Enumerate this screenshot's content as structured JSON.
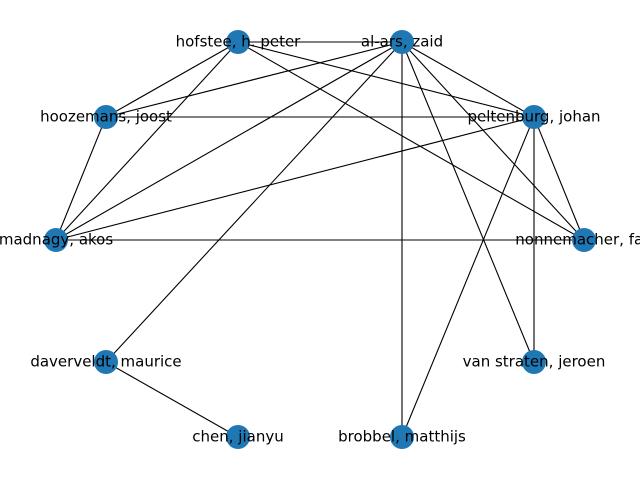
{
  "graph": {
    "node_color": "#1f77b4",
    "edge_color": "#000000",
    "nodes": [
      {
        "id": "al-ars",
        "label": "al-ars, zaid"
      },
      {
        "id": "hofstee",
        "label": "hofstee, h. peter"
      },
      {
        "id": "hoozemans",
        "label": "hoozemans, joost"
      },
      {
        "id": "madnagy",
        "label": "madnagy, akos"
      },
      {
        "id": "daverveldt",
        "label": "daverveldt, maurice"
      },
      {
        "id": "chen",
        "label": "chen, jianyu"
      },
      {
        "id": "brobbel",
        "label": "brobbel, matthijs"
      },
      {
        "id": "vanstraten",
        "label": "van straten, jeroen"
      },
      {
        "id": "nonnemacher",
        "label": "nonnemacher, fab"
      },
      {
        "id": "peltenburg",
        "label": "peltenburg, johan"
      }
    ],
    "edges": [
      [
        "hofstee",
        "al-ars"
      ],
      [
        "hofstee",
        "hoozemans"
      ],
      [
        "hofstee",
        "madnagy"
      ],
      [
        "hofstee",
        "peltenburg"
      ],
      [
        "hofstee",
        "nonnemacher"
      ],
      [
        "al-ars",
        "hoozemans"
      ],
      [
        "al-ars",
        "madnagy"
      ],
      [
        "al-ars",
        "daverveldt"
      ],
      [
        "al-ars",
        "brobbel"
      ],
      [
        "al-ars",
        "vanstraten"
      ],
      [
        "al-ars",
        "nonnemacher"
      ],
      [
        "al-ars",
        "peltenburg"
      ],
      [
        "hoozemans",
        "peltenburg"
      ],
      [
        "hoozemans",
        "madnagy"
      ],
      [
        "peltenburg",
        "madnagy"
      ],
      [
        "peltenburg",
        "nonnemacher"
      ],
      [
        "peltenburg",
        "vanstraten"
      ],
      [
        "peltenburg",
        "brobbel"
      ],
      [
        "madnagy",
        "nonnemacher"
      ],
      [
        "daverveldt",
        "chen"
      ]
    ]
  }
}
